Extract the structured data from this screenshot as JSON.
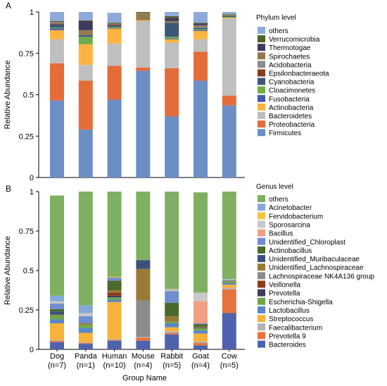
{
  "xlabel": "Group Name",
  "categories": [
    "Dog",
    "Panda",
    "Human",
    "Mouse",
    "Rabbit",
    "Goat",
    "Cow"
  ],
  "sample_sizes": [
    "(n=7)",
    "(n=1)",
    "(n=10)",
    "(n=4)",
    "(n=5)",
    "(n=4)",
    "(n=5)"
  ],
  "colors": {
    "others": "#8eaadb",
    "Verrucomicrobia": "#4f6228",
    "Thermotogae": "#403a5e",
    "Spirochaetes": "#947a4f",
    "Acidobacteria": "#8c8c8c",
    "Epsilonbacteraeota": "#8b3a1e",
    "Cyanobacteria": "#3e5778",
    "Cloacimonetes": "#70ad47",
    "Fusobacteria": "#4a5aa8",
    "Actinobacteria": "#ffb340",
    "Bacteroidetes": "#bfbfbf",
    "Proteobacteria": "#e46c39",
    "Firmicutes": "#6b8ec4",
    "g_others": "#7fb062",
    "Acinetobacter": "#86a8d8",
    "Fervidobacterium": "#f5c342",
    "Sporosarcina": "#c8c8c8",
    "Bacillus": "#f0a081",
    "Unidentified_Chloroplast": "#6f8ed0",
    "Actinobacillus": "#4a6a2c",
    "Unidentified_Muribaculaceae": "#3a4f7c",
    "Unidentified_Lachnospiraceae": "#9a7a35",
    "Lachnospiraceae NK4A136 group": "#8c8c8c",
    "Veillonella": "#8a3a1a",
    "Prevotella": "#3f3a62",
    "Escherichia-Shigella": "#6da64a",
    "Lactobacillus": "#5b86c8",
    "Streptococcus": "#f6b23a",
    "Faecalibacterium": "#b3b3b3",
    "Prevotella 9": "#e5733e",
    "Bacteroides": "#4e62ad"
  },
  "chart_data": [
    {
      "type": "bar",
      "stacked": true,
      "panel_label": "A",
      "ylabel": "Relative Abundance",
      "ylim": [
        0,
        1
      ],
      "yticks": [
        "0",
        "0.25",
        "0.5",
        "0.75",
        "1"
      ],
      "legend_title": "Phylum level",
      "legend_position": "right",
      "categories": [
        "Dog",
        "Panda",
        "Human",
        "Mouse",
        "Rabbit",
        "Goat",
        "Cow"
      ],
      "series": [
        {
          "name": "Firmicutes",
          "values": [
            0.465,
            0.29,
            0.47,
            0.645,
            0.37,
            0.585,
            0.435
          ]
        },
        {
          "name": "Proteobacteria",
          "values": [
            0.225,
            0.295,
            0.205,
            0.02,
            0.29,
            0.175,
            0.06
          ]
        },
        {
          "name": "Bacteroidetes",
          "values": [
            0.145,
            0.095,
            0.135,
            0.28,
            0.155,
            0.075,
            0.465
          ]
        },
        {
          "name": "Actinobacteria",
          "values": [
            0.055,
            0.125,
            0.09,
            0.005,
            0.02,
            0.05,
            0.005
          ]
        },
        {
          "name": "Fusobacteria",
          "values": [
            0.01,
            0.0,
            0.005,
            0.0,
            0.005,
            0.005,
            0.0
          ]
        },
        {
          "name": "Cloacimonetes",
          "values": [
            0.005,
            0.045,
            0.005,
            0.0,
            0.01,
            0.005,
            0.005
          ]
        },
        {
          "name": "Cyanobacteria",
          "values": [
            0.02,
            0.01,
            0.01,
            0.0,
            0.085,
            0.01,
            0.005
          ]
        },
        {
          "name": "Epsilonbacteraeota",
          "values": [
            0.005,
            0.0,
            0.005,
            0.0,
            0.0,
            0.0,
            0.0
          ]
        },
        {
          "name": "Acidobacteria",
          "values": [
            0.005,
            0.0,
            0.0,
            0.0,
            0.0,
            0.005,
            0.0
          ]
        },
        {
          "name": "Spirochaetes",
          "values": [
            0.005,
            0.03,
            0.005,
            0.045,
            0.01,
            0.01,
            0.005
          ]
        },
        {
          "name": "Thermotogae",
          "values": [
            0.0,
            0.055,
            0.0,
            0.0,
            0.02,
            0.01,
            0.0
          ]
        },
        {
          "name": "Verrucomicrobia",
          "values": [
            0.005,
            0.005,
            0.005,
            0.005,
            0.01,
            0.005,
            0.005
          ]
        },
        {
          "name": "others",
          "values": [
            0.055,
            0.05,
            0.06,
            0.0,
            0.025,
            0.065,
            0.015
          ]
        }
      ]
    },
    {
      "type": "bar",
      "stacked": true,
      "panel_label": "B",
      "ylabel": "Relative Abundance",
      "ylim": [
        0,
        1
      ],
      "yticks": [
        "0",
        "0.25",
        "0.5",
        "0.75",
        "1"
      ],
      "legend_title": "Genus level",
      "legend_position": "right",
      "categories": [
        "Dog",
        "Panda",
        "Human",
        "Mouse",
        "Rabbit",
        "Goat",
        "Cow"
      ],
      "series": [
        {
          "name": "Bacteroides",
          "values": [
            0.045,
            0.035,
            0.055,
            0.055,
            0.095,
            0.025,
            0.23
          ]
        },
        {
          "name": "Prevotella 9",
          "values": [
            0.01,
            0.005,
            0.005,
            0.02,
            0.01,
            0.015,
            0.15
          ]
        },
        {
          "name": "Faecalibacterium",
          "values": [
            0.005,
            0.005,
            0.005,
            0.005,
            0.01,
            0.01,
            0.01
          ]
        },
        {
          "name": "Streptococcus",
          "values": [
            0.105,
            0.06,
            0.235,
            0.0,
            0.025,
            0.05,
            0.02
          ]
        },
        {
          "name": "Lactobacillus",
          "values": [
            0.025,
            0.03,
            0.015,
            0.0,
            0.025,
            0.02,
            0.01
          ]
        },
        {
          "name": "Escherichia-Shigella",
          "values": [
            0.025,
            0.02,
            0.015,
            0.0,
            0.01,
            0.015,
            0.01
          ]
        },
        {
          "name": "Prevotella",
          "values": [
            0.0,
            0.0,
            0.01,
            0.0,
            0.0,
            0.005,
            0.0
          ]
        },
        {
          "name": "Veillonella",
          "values": [
            0.0,
            0.0,
            0.02,
            0.0,
            0.0,
            0.0,
            0.0
          ]
        },
        {
          "name": "Lachnospiraceae NK4A136 group",
          "values": [
            0.0,
            0.0,
            0.0,
            0.23,
            0.0,
            0.0,
            0.0
          ]
        },
        {
          "name": "Unidentified_Lachnospiraceae",
          "values": [
            0.005,
            0.01,
            0.015,
            0.2,
            0.035,
            0.005,
            0.005
          ]
        },
        {
          "name": "Unidentified_Muribaculaceae",
          "values": [
            0.02,
            0.0,
            0.0,
            0.055,
            0.0,
            0.0,
            0.0
          ]
        },
        {
          "name": "Actinobacillus",
          "values": [
            0.015,
            0.0,
            0.06,
            0.0,
            0.085,
            0.015,
            0.0
          ]
        },
        {
          "name": "Unidentified_Chloroplast",
          "values": [
            0.035,
            0.045,
            0.02,
            0.0,
            0.075,
            0.005,
            0.005
          ]
        },
        {
          "name": "Bacillus",
          "values": [
            0.0,
            0.0,
            0.0,
            0.0,
            0.0,
            0.14,
            0.0
          ]
        },
        {
          "name": "Sporosarcina",
          "values": [
            0.015,
            0.02,
            0.0,
            0.0,
            0.005,
            0.055,
            0.005
          ]
        },
        {
          "name": "Fervidobacterium",
          "values": [
            0.0,
            0.0,
            0.005,
            0.0,
            0.005,
            0.0,
            0.0
          ]
        },
        {
          "name": "Acinetobacter",
          "values": [
            0.035,
            0.05,
            0.0,
            0.0,
            0.005,
            0.0,
            0.0
          ]
        },
        {
          "name": "others",
          "values": [
            0.635,
            0.72,
            0.54,
            0.435,
            0.615,
            0.635,
            0.555
          ]
        }
      ]
    }
  ]
}
